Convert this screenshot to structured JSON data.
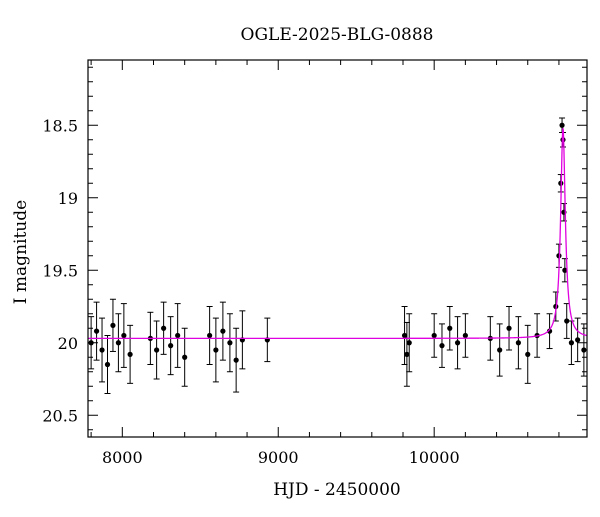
{
  "chart_data": {
    "type": "scatter",
    "title": "OGLE-2025-BLG-0888",
    "xlabel": "HJD - 2450000",
    "ylabel": "I magnitude",
    "xlim": [
      7780,
      10980
    ],
    "ylim": [
      20.65,
      18.05
    ],
    "y_inverted": true,
    "grid": false,
    "xticks": [
      {
        "value": 8000,
        "label": "8000"
      },
      {
        "value": 9000,
        "label": "9000"
      },
      {
        "value": 10000,
        "label": "10000"
      }
    ],
    "yticks": [
      {
        "value": 18.5,
        "label": "18.5"
      },
      {
        "value": 19,
        "label": "19"
      },
      {
        "value": 19.5,
        "label": "19.5"
      },
      {
        "value": 20,
        "label": "20"
      },
      {
        "value": 20.5,
        "label": "20.5"
      }
    ],
    "colors": {
      "points": "#000000",
      "errorbars": "#000000",
      "model": "#e000e0",
      "axes": "#000000"
    },
    "baseline_mag": 19.97,
    "series": [
      {
        "type": "scatter_errorbars",
        "x": [
          7800,
          7835,
          7870,
          7905,
          7940,
          7975,
          8010,
          8050,
          8180,
          8220,
          8265,
          8310,
          8355,
          8400,
          8560,
          8600,
          8645,
          8690,
          8730,
          8770,
          8930,
          9810,
          9825,
          9840,
          10000,
          10050,
          10100,
          10150,
          10200,
          10360,
          10420,
          10480,
          10540,
          10600,
          10660,
          10740,
          10780,
          10800,
          10812,
          10820,
          10826,
          10832,
          10838,
          10850,
          10880,
          10920,
          10960
        ],
        "y": [
          20.0,
          19.92,
          20.05,
          20.15,
          19.88,
          20.0,
          19.95,
          20.08,
          19.97,
          20.05,
          19.9,
          20.02,
          19.95,
          20.1,
          19.95,
          20.05,
          19.92,
          20.0,
          20.12,
          19.98,
          19.98,
          19.95,
          20.08,
          20.0,
          19.95,
          20.02,
          19.9,
          20.0,
          19.95,
          19.97,
          20.05,
          19.9,
          20.0,
          20.08,
          19.95,
          19.92,
          19.75,
          19.4,
          18.9,
          18.5,
          18.6,
          19.1,
          19.5,
          19.85,
          20.0,
          19.98,
          20.05
        ],
        "yerr": [
          0.18,
          0.2,
          0.22,
          0.2,
          0.18,
          0.2,
          0.22,
          0.2,
          0.18,
          0.2,
          0.18,
          0.2,
          0.22,
          0.2,
          0.2,
          0.22,
          0.2,
          0.2,
          0.22,
          0.2,
          0.15,
          0.2,
          0.22,
          0.2,
          0.15,
          0.15,
          0.15,
          0.18,
          0.15,
          0.15,
          0.18,
          0.15,
          0.18,
          0.2,
          0.15,
          0.12,
          0.1,
          0.08,
          0.06,
          0.05,
          0.05,
          0.06,
          0.08,
          0.12,
          0.15,
          0.15,
          0.18
        ]
      },
      {
        "type": "model_curve",
        "t0": 10826,
        "baseline": 19.97,
        "peak": 18.52,
        "tE": 18
      }
    ]
  }
}
